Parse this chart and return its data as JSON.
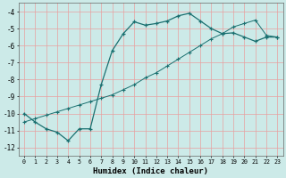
{
  "xlabel": "Humidex (Indice chaleur)",
  "bg_color": "#cceae8",
  "line_color": "#1a7070",
  "grid_color": "#e8a0a0",
  "xlim": [
    -0.5,
    23.5
  ],
  "ylim": [
    -12.5,
    -3.5
  ],
  "xticks": [
    0,
    1,
    2,
    3,
    4,
    5,
    6,
    7,
    8,
    9,
    10,
    11,
    12,
    13,
    14,
    15,
    16,
    17,
    18,
    19,
    20,
    21,
    22,
    23
  ],
  "yticks": [
    -12,
    -11,
    -10,
    -9,
    -8,
    -7,
    -6,
    -5,
    -4
  ],
  "curve1_x": [
    0,
    1,
    2,
    3,
    4,
    5,
    6,
    7,
    8,
    9,
    10,
    11,
    12,
    13,
    14,
    15,
    16,
    17,
    18,
    19,
    20,
    21,
    22,
    23
  ],
  "curve1_y": [
    -10.0,
    -10.5,
    -10.9,
    -11.1,
    -11.6,
    -10.9,
    -10.9,
    -8.3,
    -6.3,
    -5.3,
    -4.6,
    -4.8,
    -4.7,
    -4.55,
    -4.25,
    -4.1,
    -4.55,
    -5.0,
    -5.3,
    -5.25,
    -5.5,
    -5.75,
    -5.5,
    -5.5
  ],
  "curve2_x": [
    0,
    1,
    2,
    3,
    4,
    5,
    6,
    7,
    8,
    9,
    10,
    11,
    12,
    13,
    14,
    15,
    16,
    17,
    18,
    19,
    20,
    21,
    22,
    23
  ],
  "curve2_y": [
    -10.5,
    -10.3,
    -10.1,
    -9.9,
    -9.7,
    -9.5,
    -9.3,
    -9.1,
    -8.9,
    -8.6,
    -8.3,
    -7.9,
    -7.6,
    -7.2,
    -6.8,
    -6.4,
    -6.0,
    -5.6,
    -5.3,
    -4.9,
    -4.7,
    -4.5,
    -5.4,
    -5.5
  ]
}
